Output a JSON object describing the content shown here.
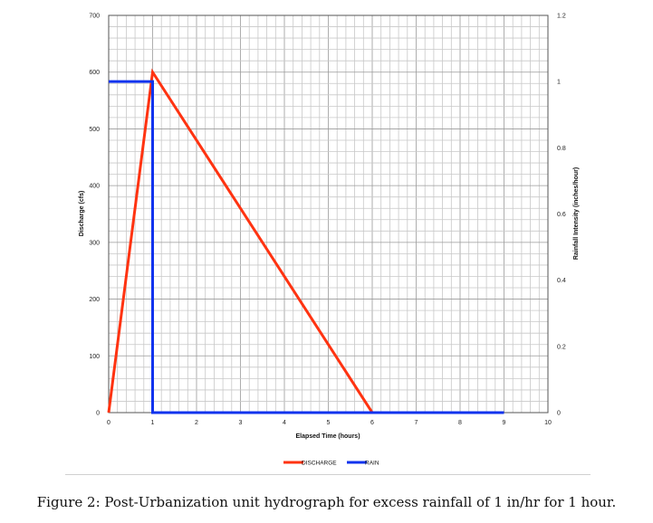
{
  "chart_data": {
    "type": "line",
    "xlabel": "Elapsed Time (hours)",
    "ylabel": "Discharge (cfs)",
    "y2label": "Rainfall Intensity (inches/hour)",
    "xlim": [
      0,
      10
    ],
    "ylim": [
      0,
      700
    ],
    "y2lim": [
      0,
      1.2
    ],
    "x_ticks": [
      "0",
      "1",
      "2",
      "3",
      "4",
      "5",
      "6",
      "7",
      "8",
      "9",
      "10"
    ],
    "y_ticks": [
      "0",
      "100",
      "200",
      "300",
      "400",
      "500",
      "600",
      "700"
    ],
    "y2_ticks": [
      "0",
      "0.2",
      "0.4",
      "0.6",
      "0.8",
      "1",
      "1.2"
    ],
    "grid": true,
    "legend_position": "bottom",
    "series": [
      {
        "name": "DISCHARGE",
        "color": "#ff3311",
        "axis": "left",
        "x": [
          0,
          1,
          6,
          9
        ],
        "y": [
          0,
          600,
          0,
          0
        ]
      },
      {
        "name": "RAIN",
        "color": "#1133ee",
        "axis": "right",
        "x": [
          0,
          1,
          1,
          9
        ],
        "y": [
          1,
          1,
          0,
          0
        ]
      }
    ]
  },
  "caption": "Figure 2: Post-Urbanization unit hydrograph for excess rainfall of 1 in/hr for 1 hour."
}
